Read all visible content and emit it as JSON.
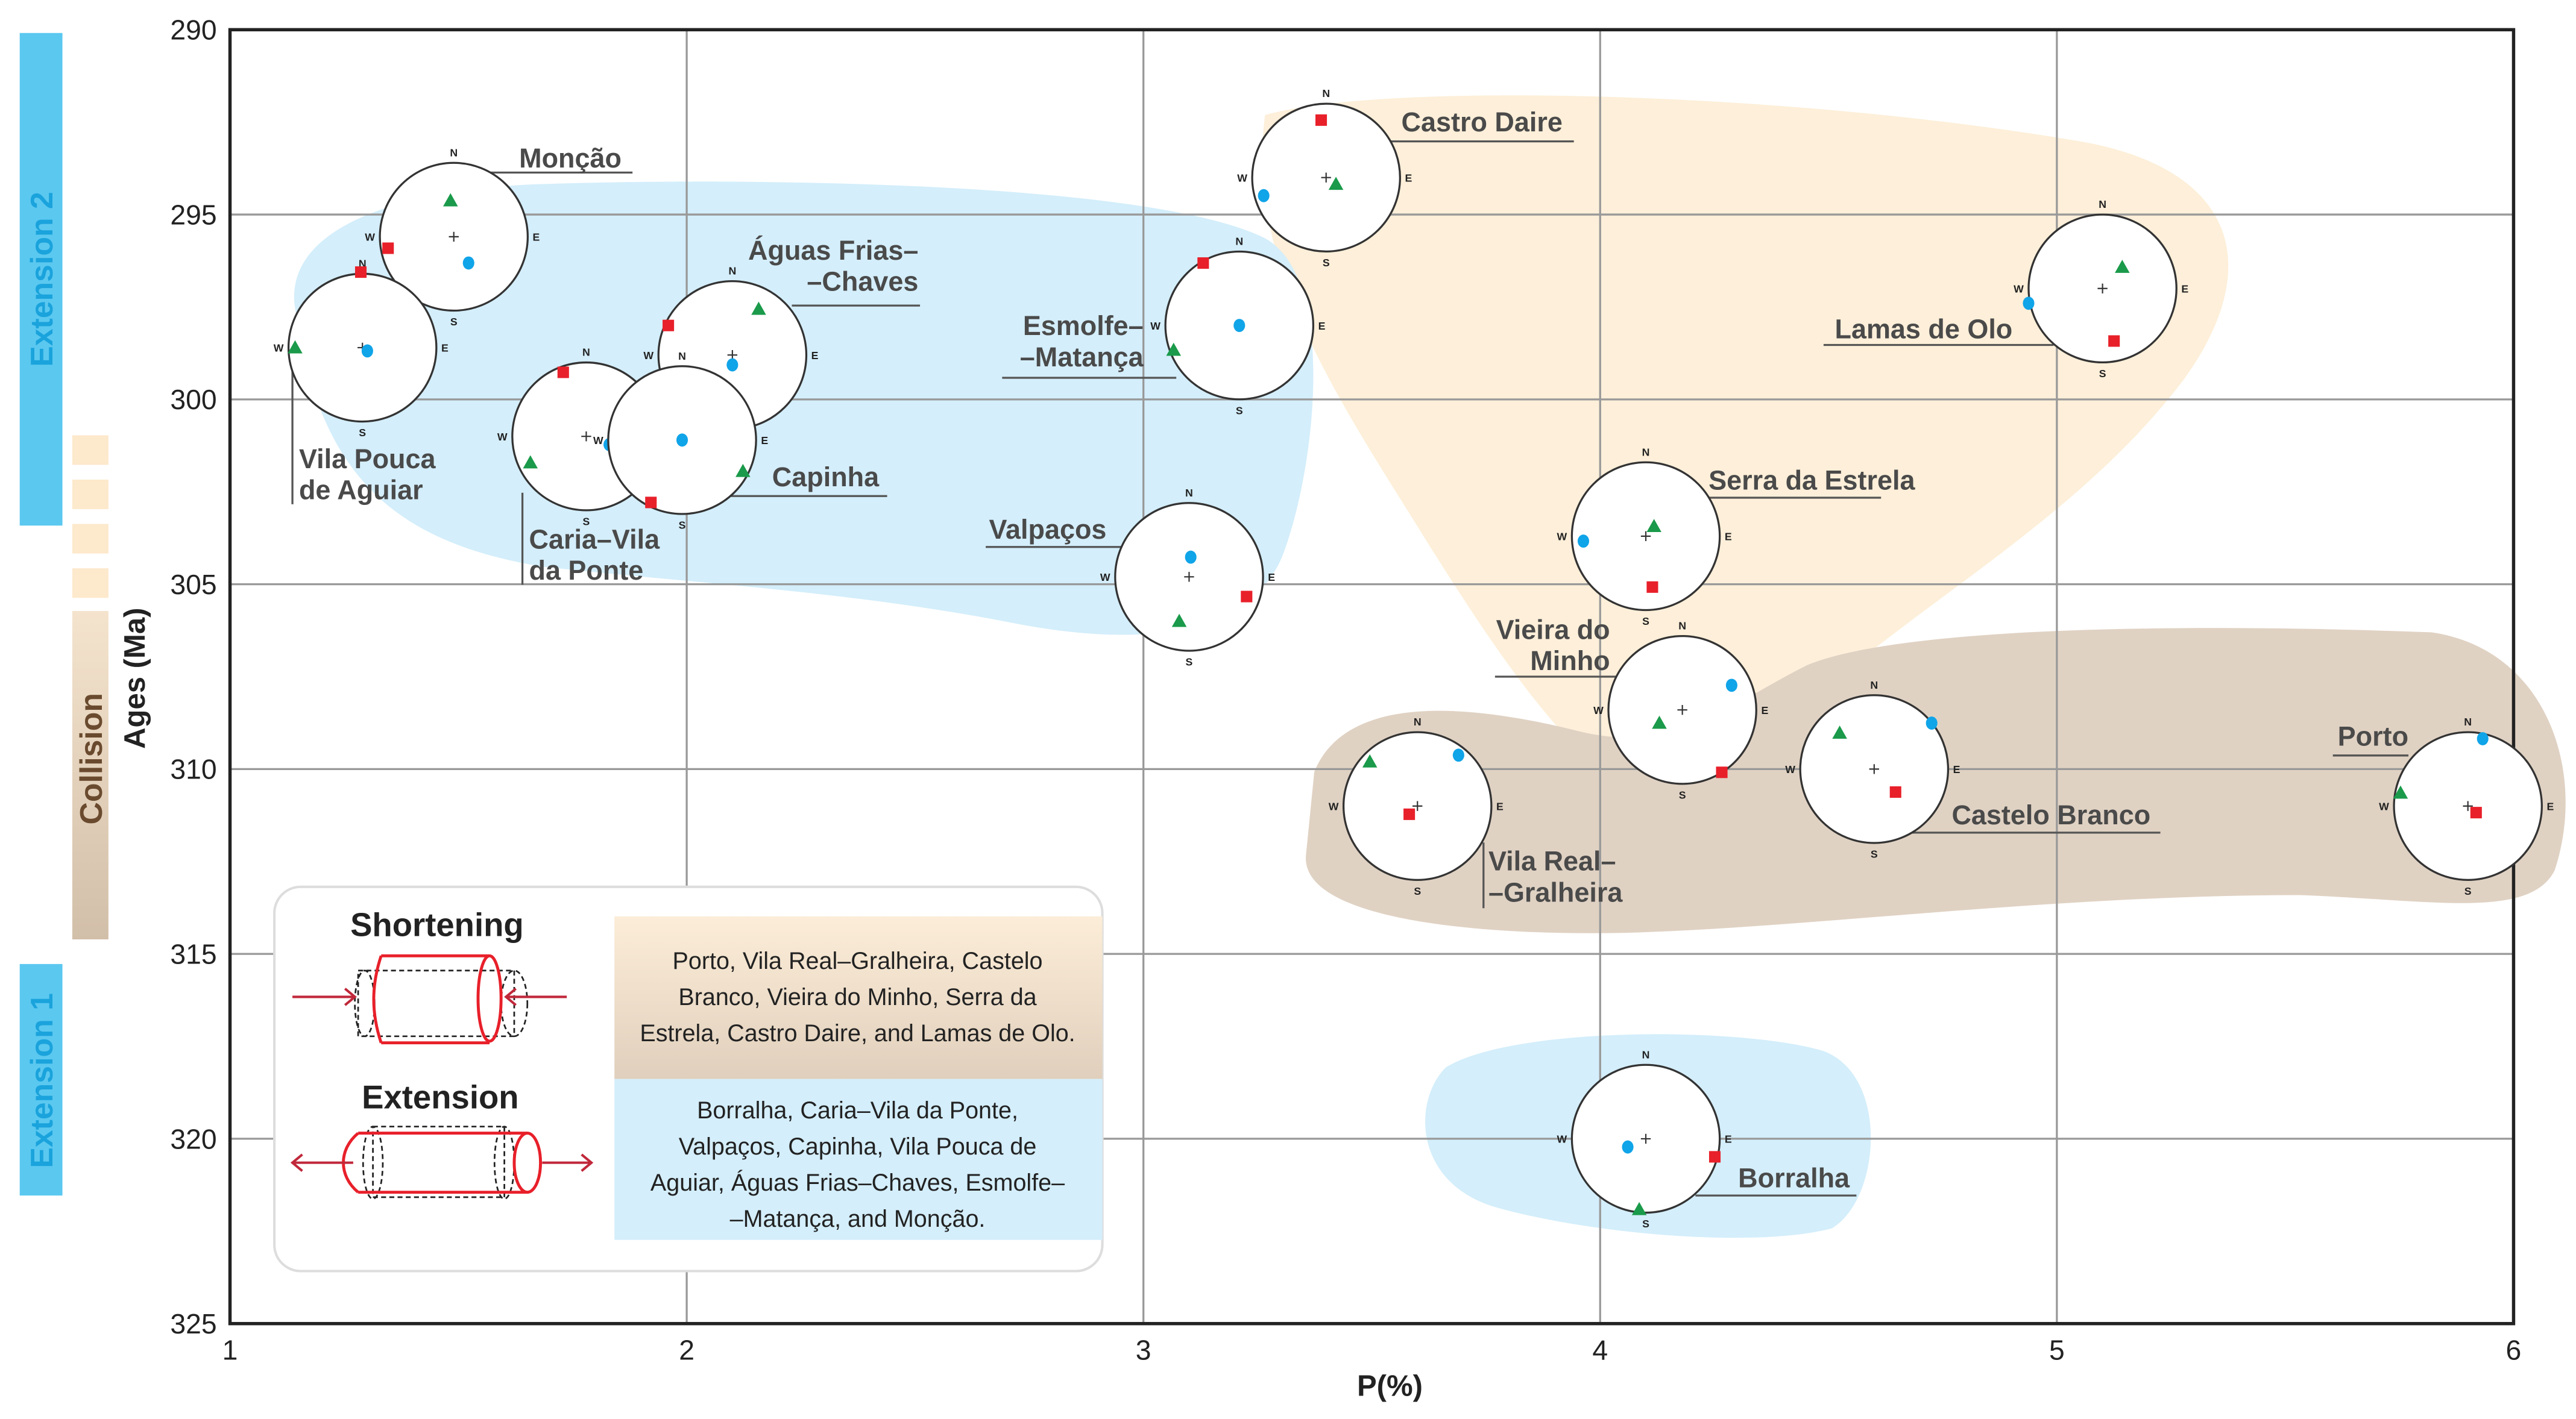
{
  "chart_data": {
    "type": "scatter",
    "title": "",
    "xlabel": "P(%)",
    "ylabel": "Ages (Ma)",
    "xlim": [
      1,
      6
    ],
    "ylim": [
      290,
      325
    ],
    "y_inverted": true,
    "grid": true,
    "xticks": [
      "1",
      "2",
      "3",
      "4",
      "5",
      "6"
    ],
    "yticks": [
      "290",
      "295",
      "300",
      "305",
      "310",
      "315",
      "320",
      "325"
    ],
    "compass_labels": {
      "n": "N",
      "s": "S",
      "e": "E",
      "w": "W"
    },
    "sites": [
      {
        "name": "Monção",
        "label_lines": [
          "Monção"
        ],
        "P": 1.49,
        "age": 295.6,
        "group": "extension"
      },
      {
        "name": "Vila Pouca de Aguiar",
        "label_lines": [
          "Vila Pouca",
          "de Aguiar"
        ],
        "P": 1.29,
        "age": 298.6,
        "group": "extension"
      },
      {
        "name": "Águas Frias–Chaves",
        "label_lines": [
          "Águas Frias–",
          "–Chaves"
        ],
        "P": 2.1,
        "age": 298.8,
        "group": "extension"
      },
      {
        "name": "Caria–Vila da Ponte",
        "label_lines": [
          "Caria–Vila",
          "da Ponte"
        ],
        "P": 1.78,
        "age": 301.0,
        "group": "extension"
      },
      {
        "name": "Capinha",
        "label_lines": [
          "Capinha"
        ],
        "P": 1.99,
        "age": 301.1,
        "group": "extension"
      },
      {
        "name": "Esmolfe–Matança",
        "label_lines": [
          "Esmolfe–",
          "–Matança"
        ],
        "P": 3.21,
        "age": 298.0,
        "group": "extension"
      },
      {
        "name": "Valpaços",
        "label_lines": [
          "Valpaços"
        ],
        "P": 3.1,
        "age": 304.8,
        "group": "extension"
      },
      {
        "name": "Castro Daire",
        "label_lines": [
          "Castro Daire"
        ],
        "P": 3.4,
        "age": 294.0,
        "group": "shortening"
      },
      {
        "name": "Lamas de Olo",
        "label_lines": [
          "Lamas de Olo"
        ],
        "P": 5.1,
        "age": 297.0,
        "group": "shortening"
      },
      {
        "name": "Serra da Estrela",
        "label_lines": [
          "Serra da Estrela"
        ],
        "P": 4.1,
        "age": 303.7,
        "group": "shortening"
      },
      {
        "name": "Vieira do Minho",
        "label_lines": [
          "Vieira do",
          "Minho"
        ],
        "P": 4.18,
        "age": 308.4,
        "group": "shortening"
      },
      {
        "name": "Vila Real–Gralheira",
        "label_lines": [
          "Vila Real–",
          "–Gralheira"
        ],
        "P": 3.6,
        "age": 311.0,
        "group": "shortening"
      },
      {
        "name": "Castelo Branco",
        "label_lines": [
          "Castelo Branco"
        ],
        "P": 4.6,
        "age": 310.0,
        "group": "shortening"
      },
      {
        "name": "Porto",
        "label_lines": [
          "Porto"
        ],
        "P": 5.9,
        "age": 311.0,
        "group": "shortening"
      },
      {
        "name": "Borralha",
        "label_lines": [
          "Borralha"
        ],
        "P": 4.1,
        "age": 320.0,
        "group": "extension"
      }
    ],
    "periods": [
      {
        "label": "Extension 2",
        "color": "#5bc8f0",
        "age_range": [
          290.1,
          303.4
        ]
      },
      {
        "label": "Collision",
        "color": "#c8b29a",
        "age_range": [
          305.8,
          314.7
        ]
      },
      {
        "label": "Extension 1",
        "color": "#5bc8f0",
        "age_range": [
          315.4,
          321.7
        ]
      }
    ],
    "legend": {
      "shortening_title": "Shortening",
      "extension_title": "Extension",
      "shortening_sites": [
        "Porto, Vila Real–Gralheira, Castelo",
        "Branco, Vieira do Minho, Serra da",
        "Estrela, Castro Daire, and Lamas de Olo."
      ],
      "extension_sites": [
        "Borralha, Caria–Vila da Ponte,",
        "Valpaços, Capinha, Vila Pouca de",
        "Aguiar, Águas Frias–Chaves, Esmolfe–",
        "–Matança, and Monção."
      ],
      "placement": "bottom-left"
    },
    "colors": {
      "extension_fill": "#d4eefb",
      "shortening_fill": "#fdefd9",
      "collision_fill": "#e0d2c3",
      "square": "#e8202a",
      "triangle": "#1a9a4a",
      "circle": "#10a4e8",
      "axis": "#222222",
      "grid": "#999999"
    }
  }
}
